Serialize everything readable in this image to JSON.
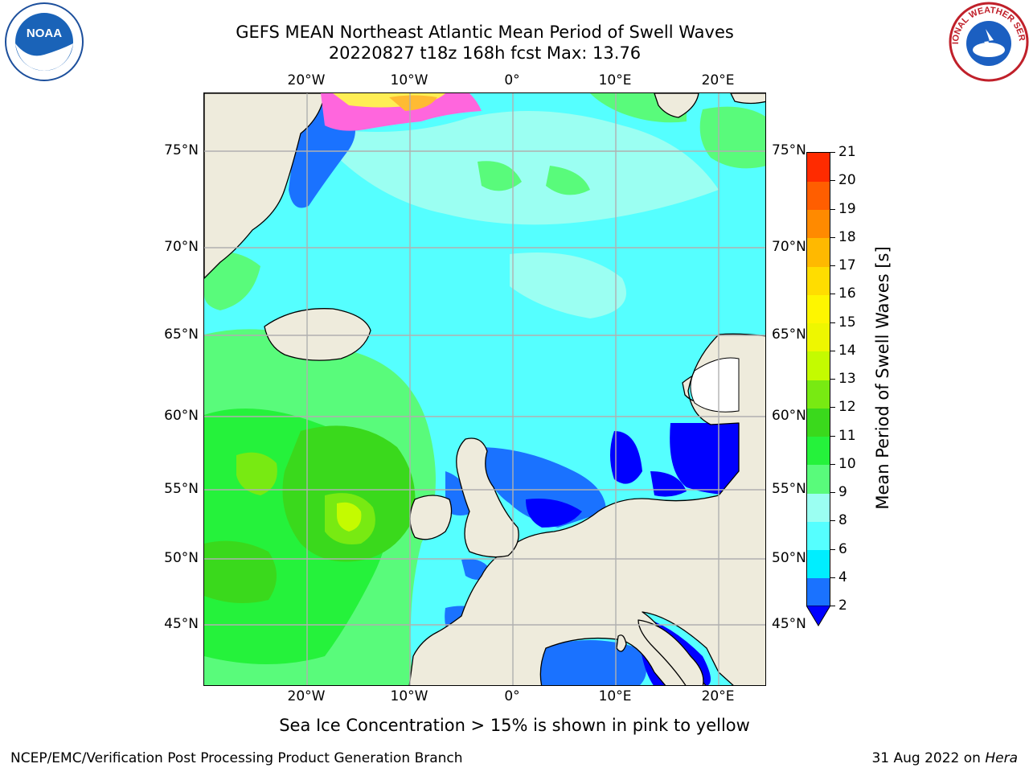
{
  "header": {
    "title_line1": "GEFS MEAN Northeast Atlantic Mean Period of Swell Waves",
    "title_line2": "20220827 t18z 168h fcst   Max: 13.76"
  },
  "map": {
    "lon_labels": [
      "20°W",
      "10°W",
      "0°",
      "10°E",
      "20°E"
    ],
    "lat_labels": [
      "75°N",
      "70°N",
      "65°N",
      "60°N",
      "55°N",
      "50°N",
      "45°N"
    ],
    "colors": {
      "land": "#eeebdc",
      "ocean_base": "#55ffff",
      "grid": "#b0b0b0"
    }
  },
  "colorbar": {
    "title": "Mean Period of Swell Waves [s]",
    "tick_labels": [
      "2",
      "4",
      "6",
      "8",
      "9",
      "10",
      "11",
      "12",
      "13",
      "14",
      "15",
      "16",
      "17",
      "18",
      "19",
      "20",
      "21"
    ],
    "colors": [
      "#1a72ff",
      "#00eeff",
      "#55ffff",
      "#9bfff2",
      "#59fb7b",
      "#25f23b",
      "#3ad91c",
      "#78ea12",
      "#c4fb00",
      "#eef700",
      "#fef600",
      "#ffdd00",
      "#ffb900",
      "#ff8a00",
      "#ff5e00",
      "#ff2b00"
    ],
    "extend_color": "#0000ff"
  },
  "ice_note": "Sea Ice Concentration > 15% is shown in pink to yellow",
  "footer": {
    "left": "NCEP/EMC/Verification Post Processing Product Generation Branch",
    "date": "31 Aug 2022 on",
    "host": "Hera"
  },
  "logos": {
    "noaa_text": "NOAA",
    "nws_text": "NATIONAL WEATHER SERVICE"
  }
}
